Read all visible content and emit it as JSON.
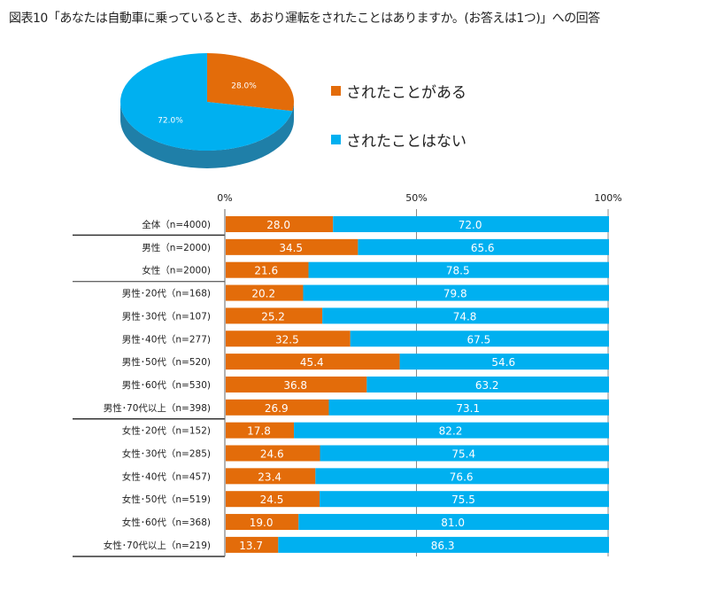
{
  "title": "図表10「あなたは自動車に乗っているとき、あおり運転をされたことはありますか。(お答えは1つ)」への回答",
  "colors": {
    "yes": "#E36C0A",
    "no": "#00B0F0"
  },
  "legend": [
    "されたことがある",
    "されたことはない"
  ],
  "chart_data": [
    {
      "type": "pie",
      "labels": [
        "されたことがある",
        "されたことはない"
      ],
      "values": [
        28.0,
        72.0
      ],
      "data_labels": [
        "28.0%",
        "72.0%"
      ]
    },
    {
      "type": "bar",
      "stacked": true,
      "orientation": "horizontal",
      "xlim": [
        0,
        100
      ],
      "x_ticks": [
        "0%",
        "50%",
        "100%"
      ],
      "grid": true,
      "categories": [
        "全体（n=4000)",
        "男性（n=2000)",
        "女性（n=2000)",
        "男性･20代（n=168)",
        "男性･30代（n=107)",
        "男性･40代（n=277)",
        "男性･50代（n=520)",
        "男性･60代（n=530)",
        "男性･70代以上（n=398)",
        "女性･20代（n=152)",
        "女性･30代（n=285)",
        "女性･40代（n=457)",
        "女性･50代（n=519)",
        "女性･60代（n=368)",
        "女性･70代以上（n=219)"
      ],
      "series": [
        {
          "name": "されたことがある",
          "values": [
            "28.0",
            "34.5",
            "21.6",
            "20.2",
            "25.2",
            "32.5",
            "45.4",
            "36.8",
            "26.9",
            "17.8",
            "24.6",
            "23.4",
            "24.5",
            "19.0",
            "13.7"
          ]
        },
        {
          "name": "されたことはない",
          "values": [
            "72.0",
            "65.6",
            "78.5",
            "79.8",
            "74.8",
            "67.5",
            "54.6",
            "63.2",
            "73.1",
            "82.2",
            "75.4",
            "76.6",
            "75.5",
            "81.0",
            "86.3"
          ]
        }
      ]
    }
  ]
}
